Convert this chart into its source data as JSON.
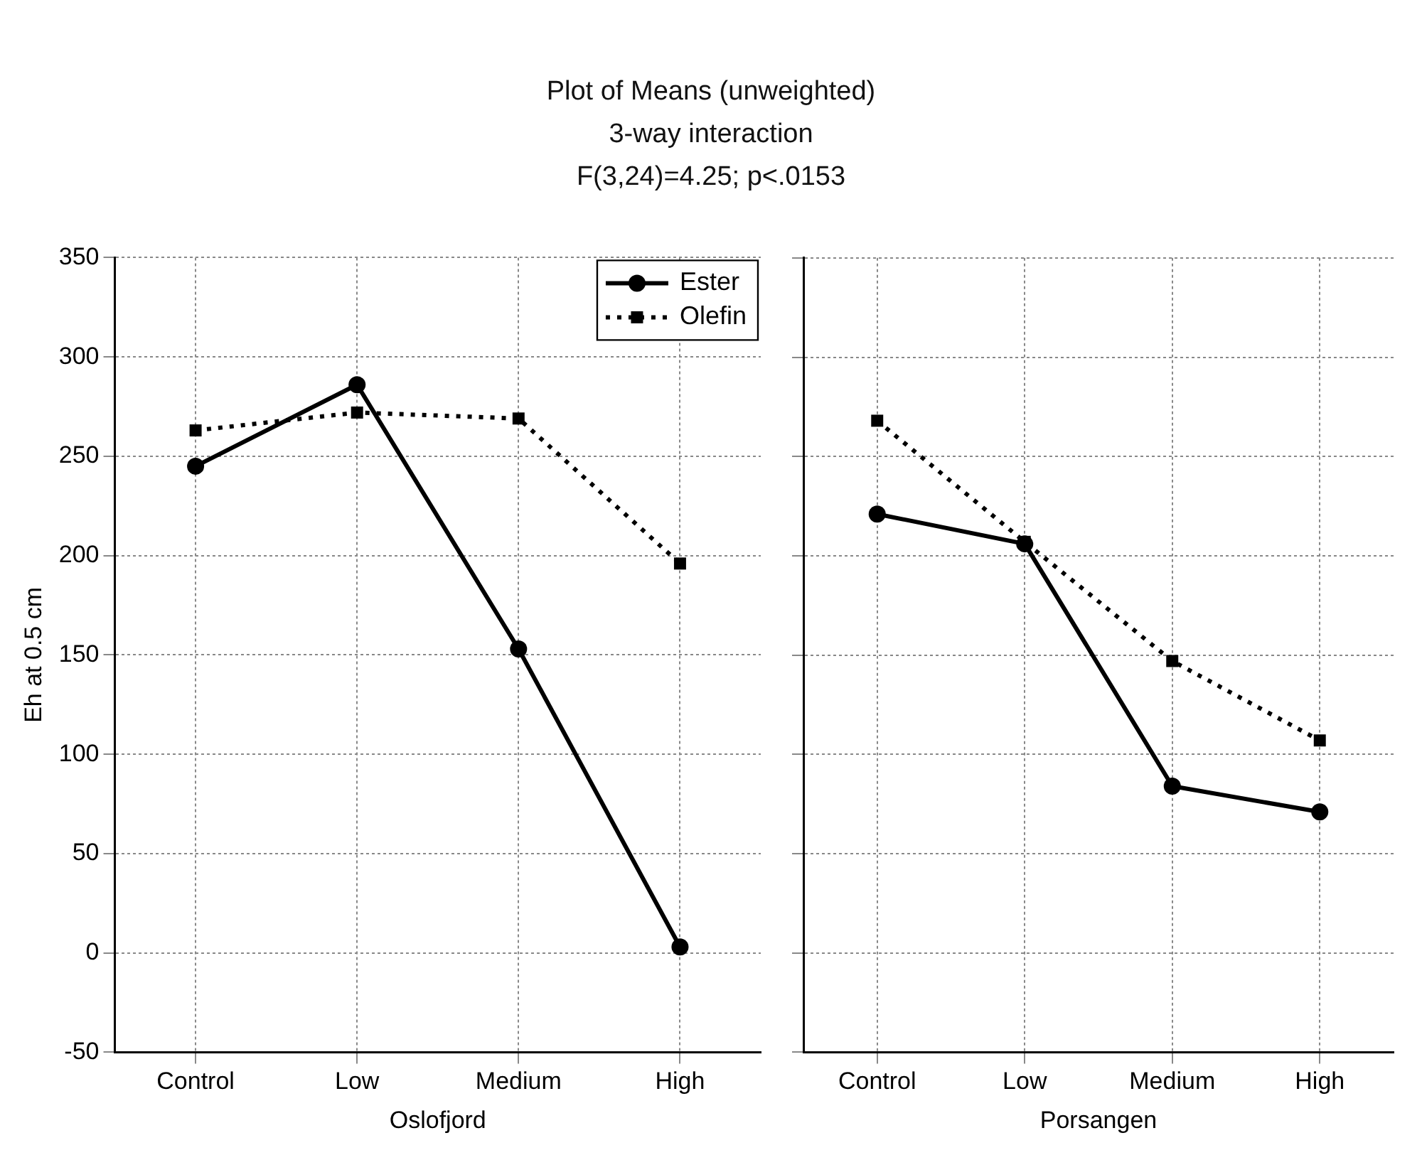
{
  "chart_data": [
    {
      "type": "line",
      "title": "Plot of Means (unweighted)",
      "subtitle": "3-way interaction",
      "annotations": [
        "F(3,24)=4.25; p<.0153"
      ],
      "xlabel": "Oslofjord",
      "ylabel": "Eh at 0.5 cm",
      "categories": [
        "Control",
        "Low",
        "Medium",
        "High"
      ],
      "series": [
        {
          "name": "Ester",
          "color": "#000000",
          "values": [
            245,
            286,
            153,
            3
          ],
          "marker": "circle",
          "line_style": "solid"
        },
        {
          "name": "Olefin",
          "color": "#000000",
          "values": [
            263,
            272,
            269,
            196
          ],
          "marker": "square",
          "line_style": "dotted"
        }
      ],
      "ylim": [
        -50,
        350
      ],
      "yticks": [
        -50,
        0,
        50,
        100,
        150,
        200,
        250,
        300,
        350
      ],
      "grid": true,
      "legend": "top right"
    },
    {
      "type": "line",
      "xlabel": "Porsangen",
      "categories": [
        "Control",
        "Low",
        "Medium",
        "High"
      ],
      "series": [
        {
          "color": "#000000",
          "values": [
            221,
            206,
            84,
            71
          ],
          "marker": "circle",
          "line_style": "solid"
        },
        {
          "color": "#000000",
          "values": [
            268,
            207,
            147,
            107
          ],
          "marker": "square",
          "line_style": "dotted"
        }
      ],
      "ylim": [
        -50,
        350
      ],
      "yticks": [
        -50,
        0,
        50,
        100,
        150,
        200,
        250,
        300,
        350
      ],
      "grid": true,
      "tick_labels": "x"
    }
  ]
}
